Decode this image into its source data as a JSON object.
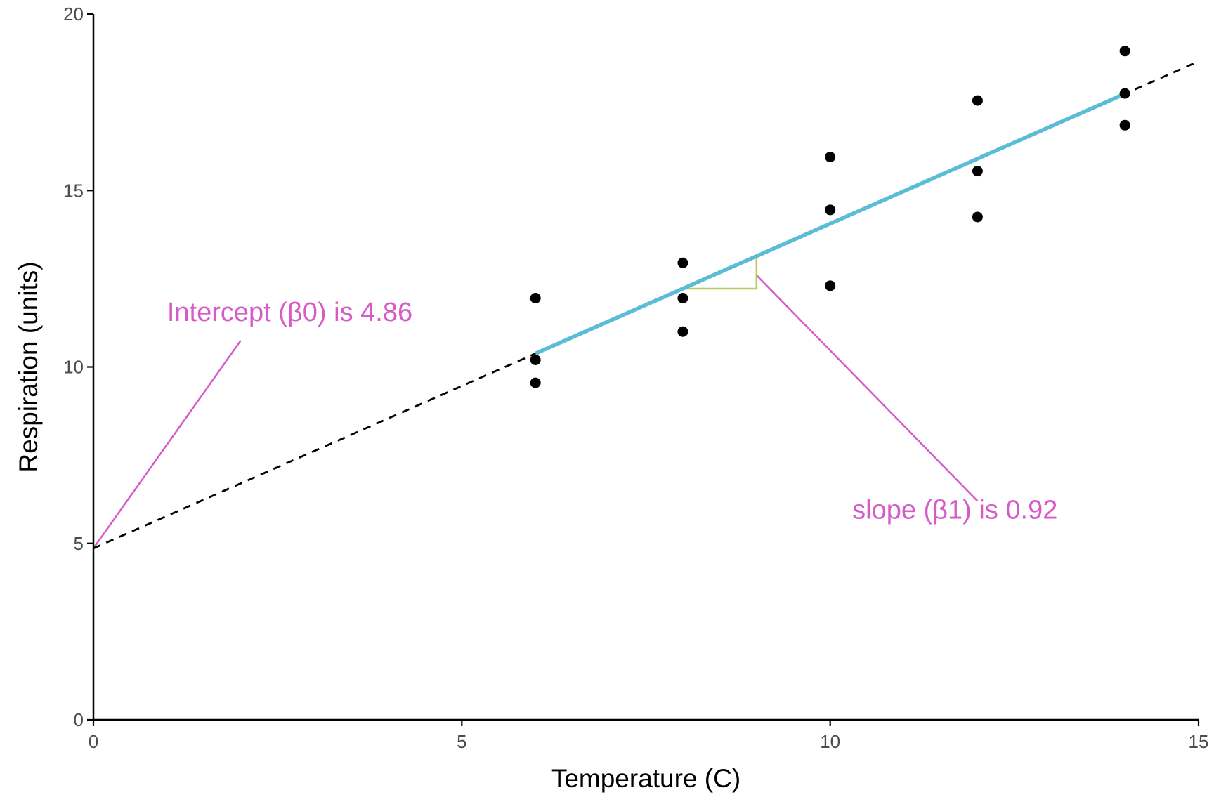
{
  "chart_data": {
    "type": "scatter",
    "title": "",
    "xlabel": "Temperature (C)",
    "ylabel": "Respiration (units)",
    "xlim": [
      0,
      15
    ],
    "ylim": [
      0,
      20
    ],
    "x_ticks": [
      0,
      5,
      10,
      15
    ],
    "y_ticks": [
      0,
      5,
      10,
      15,
      20
    ],
    "grid": false,
    "points": [
      {
        "x": 6,
        "y": 11.95
      },
      {
        "x": 6,
        "y": 10.2
      },
      {
        "x": 6,
        "y": 9.55
      },
      {
        "x": 8,
        "y": 12.95
      },
      {
        "x": 8,
        "y": 11.95
      },
      {
        "x": 8,
        "y": 11.0
      },
      {
        "x": 10,
        "y": 15.95
      },
      {
        "x": 10,
        "y": 14.45
      },
      {
        "x": 10,
        "y": 12.3
      },
      {
        "x": 12,
        "y": 17.55
      },
      {
        "x": 12,
        "y": 15.55
      },
      {
        "x": 12,
        "y": 14.25
      },
      {
        "x": 14,
        "y": 18.95
      },
      {
        "x": 14,
        "y": 17.75
      },
      {
        "x": 14,
        "y": 16.85
      }
    ],
    "extrapolated_line": {
      "intercept": 4.86,
      "slope": 0.92,
      "x_range": [
        0,
        15
      ],
      "style": "dashed",
      "color": "#000000"
    },
    "fitted_line": {
      "intercept": 4.86,
      "slope": 0.92,
      "x_range": [
        6,
        14
      ],
      "color": "#5bbcd6"
    },
    "slope_triangle": {
      "x_start": 8,
      "x_end": 9,
      "color": "#b5cc5a"
    },
    "annotations": {
      "color": "#d65bc8",
      "intercept": {
        "text": "Intercept (β0) is 4.86",
        "label_x": 1.0,
        "label_y": 11.3,
        "leader_from": {
          "x": 2.0,
          "y": 10.75
        },
        "leader_to": {
          "x": 0,
          "y": 4.86
        }
      },
      "slope": {
        "text": "slope (β1) is 0.92",
        "label_x": 10.3,
        "label_y": 5.7,
        "leader_from": {
          "x": 12.0,
          "y": 6.2
        },
        "leader_to": {
          "x": 9.0,
          "y": 12.6
        }
      }
    }
  }
}
